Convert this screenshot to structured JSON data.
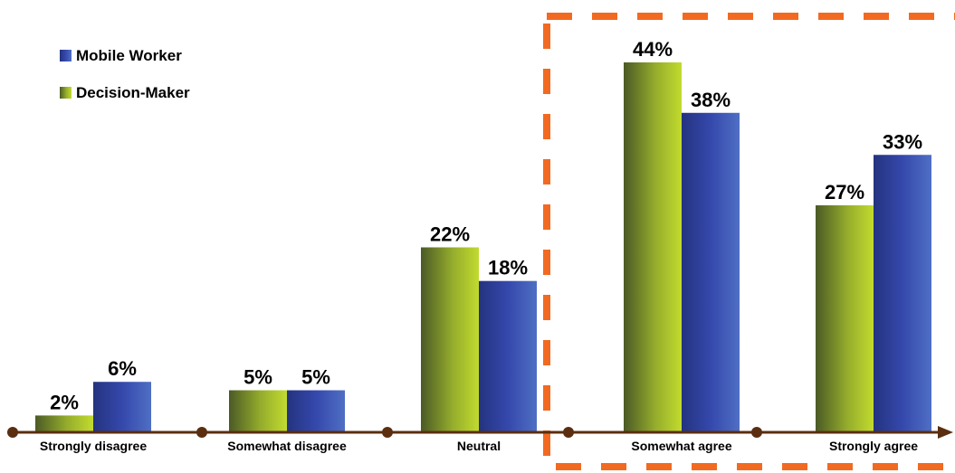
{
  "chart_data": {
    "type": "bar",
    "categories": [
      "Strongly disagree",
      "Somewhat disagree",
      "Neutral",
      "Somewhat agree",
      "Strongly agree"
    ],
    "series": [
      {
        "name": "Decision-Maker",
        "values": [
          2,
          5,
          22,
          44,
          27
        ],
        "value_labels": [
          "2%",
          "5%",
          "22%",
          "44%",
          "27%"
        ],
        "color": "#a8c02a"
      },
      {
        "name": "Mobile Worker",
        "values": [
          6,
          5,
          18,
          38,
          33
        ],
        "value_labels": [
          "6%",
          "5%",
          "18%",
          "38%",
          "33%"
        ],
        "color": "#3a4fa8"
      }
    ],
    "legend": {
      "position": "top-left",
      "order": [
        "Mobile Worker",
        "Decision-Maker"
      ]
    },
    "highlight": {
      "categories": [
        "Somewhat agree",
        "Strongly agree"
      ],
      "style": "dashed",
      "color": "#f26a21"
    },
    "axis_color": "#5a2e0e",
    "ylim": [
      0,
      50
    ],
    "grid": false,
    "title": "",
    "xlabel": "",
    "ylabel": ""
  }
}
